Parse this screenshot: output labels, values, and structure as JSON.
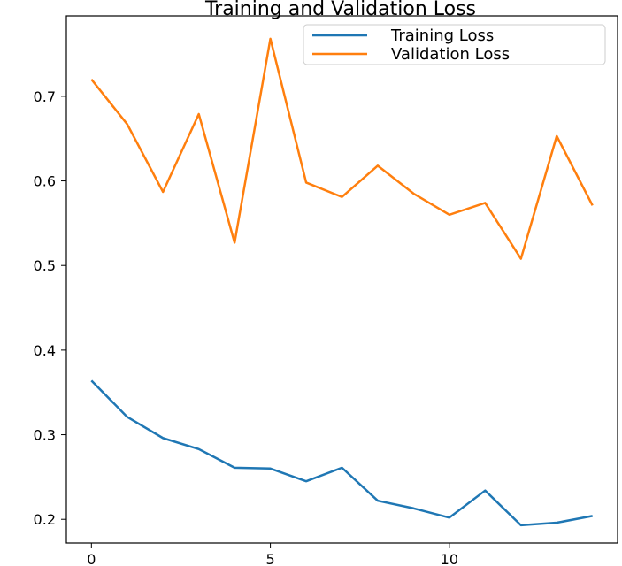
{
  "chart_data": {
    "type": "line",
    "title": "Training and Validation Loss",
    "xlabel": "",
    "ylabel": "",
    "x": [
      0,
      1,
      2,
      3,
      4,
      5,
      6,
      7,
      8,
      9,
      10,
      11,
      12,
      13,
      14
    ],
    "series": [
      {
        "name": "Training Loss",
        "color": "#1f77b4",
        "values": [
          0.364,
          0.321,
          0.296,
          0.283,
          0.261,
          0.26,
          0.245,
          0.261,
          0.222,
          0.213,
          0.202,
          0.234,
          0.193,
          0.196,
          0.204
        ]
      },
      {
        "name": "Validation Loss",
        "color": "#ff7f0e",
        "values": [
          0.72,
          0.667,
          0.587,
          0.679,
          0.527,
          0.768,
          0.598,
          0.581,
          0.618,
          0.585,
          0.56,
          0.574,
          0.508,
          0.653,
          0.571
        ]
      }
    ],
    "xticks": [
      0,
      5,
      10
    ],
    "xtick_labels": [
      "0",
      "5",
      "10"
    ],
    "yticks": [
      0.2,
      0.3,
      0.4,
      0.5,
      0.6,
      0.7
    ],
    "ytick_labels": [
      "0.2",
      "0.3",
      "0.4",
      "0.5",
      "0.6",
      "0.7"
    ],
    "xlim": [
      -0.7,
      14.7
    ],
    "ylim": [
      0.172,
      0.795
    ],
    "grid": false,
    "legend_position": "top-right"
  }
}
